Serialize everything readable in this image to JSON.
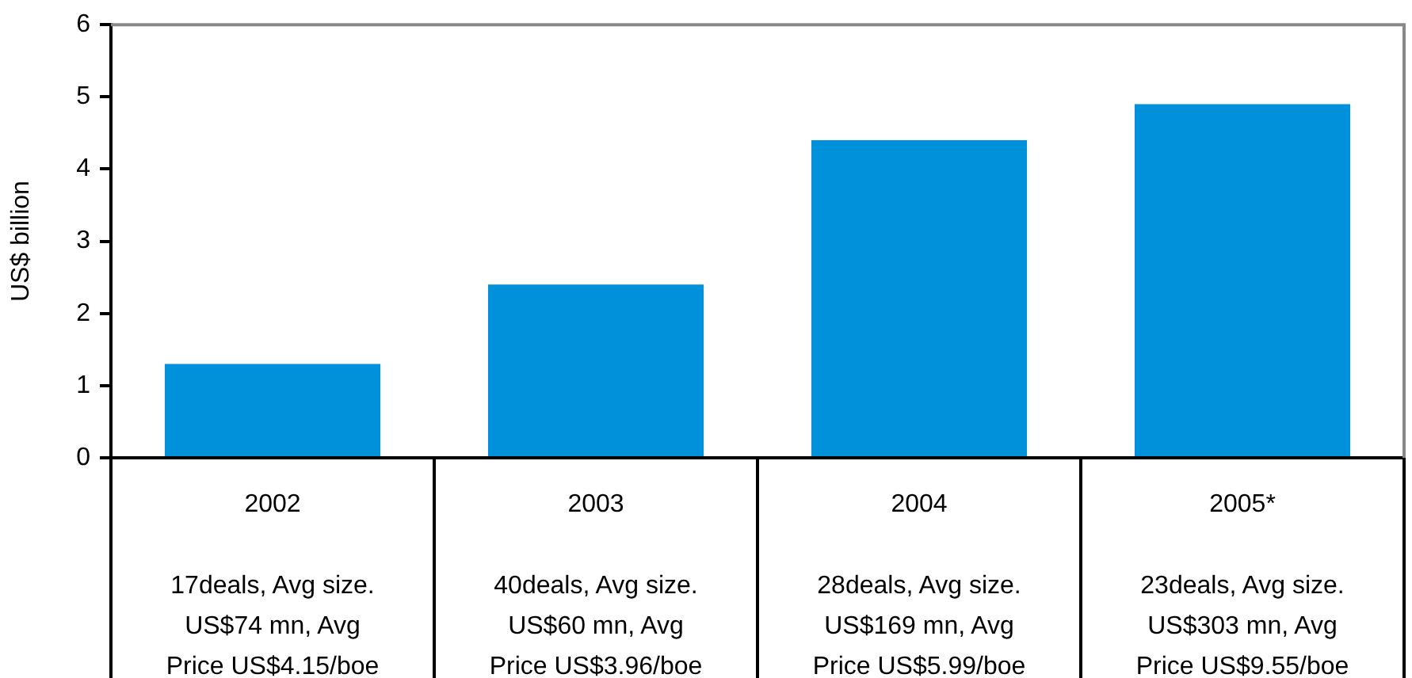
{
  "chart_data": {
    "type": "bar",
    "ylabel": "US$ billion",
    "categories": [
      "2002\n17deals, Avg size.\nUS$74 mn, Avg\nPrice US$4.15/boe",
      "2003\n40deals, Avg size.\nUS$60 mn, Avg\nPrice US$3.96/boe",
      "2004\n28deals, Avg size.\nUS$169 mn, Avg\nPrice US$5.99/boe",
      "2005*\n23deals, Avg size.\nUS$303 mn, Avg\nPrice US$9.55/boe"
    ],
    "values": [
      1.3,
      2.4,
      4.4,
      4.9
    ],
    "color": "#0091da",
    "ylim": [
      0,
      6
    ],
    "yticks": [
      0,
      1,
      2,
      3,
      4,
      5,
      6
    ]
  }
}
